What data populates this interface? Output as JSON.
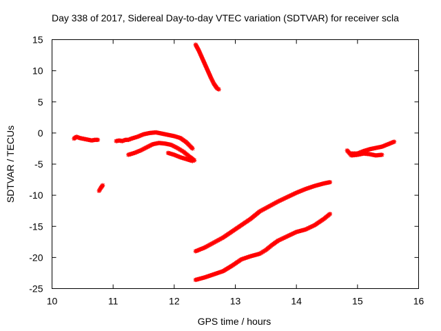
{
  "chart_data": {
    "type": "scatter",
    "title": "Day 338 of 2017, Sidereal Day-to-day VTEC variation (SDTVAR) for receiver scla",
    "xlabel": "GPS time / hours",
    "ylabel": "SDTVAR / TECUs",
    "xlim": [
      10,
      16
    ],
    "ylim": [
      -25,
      15
    ],
    "xticks": [
      10,
      11,
      12,
      13,
      14,
      15,
      16
    ],
    "yticks": [
      15,
      10,
      5,
      0,
      -5,
      -10,
      -15,
      -20,
      -25
    ],
    "grid": false,
    "marker": "plus-cross",
    "color": "#ff0000",
    "series": [
      {
        "name": "arc-1",
        "points": [
          [
            10.36,
            -0.9
          ],
          [
            10.4,
            -0.6
          ],
          [
            10.45,
            -0.8
          ],
          [
            10.5,
            -0.9
          ],
          [
            10.55,
            -1.0
          ],
          [
            10.6,
            -1.1
          ],
          [
            10.65,
            -1.2
          ],
          [
            10.7,
            -1.1
          ],
          [
            10.75,
            -1.1
          ]
        ]
      },
      {
        "name": "arc-2",
        "points": [
          [
            10.77,
            -9.3
          ],
          [
            10.8,
            -8.8
          ],
          [
            10.83,
            -8.4
          ]
        ]
      },
      {
        "name": "arc-3",
        "points": [
          [
            11.05,
            -1.3
          ],
          [
            11.1,
            -1.2
          ],
          [
            11.15,
            -1.3
          ],
          [
            11.2,
            -1.1
          ],
          [
            11.25,
            -1.1
          ],
          [
            11.3,
            -0.9
          ],
          [
            11.4,
            -0.6
          ],
          [
            11.5,
            -0.2
          ],
          [
            11.6,
            0.0
          ],
          [
            11.7,
            0.1
          ],
          [
            11.8,
            -0.1
          ],
          [
            11.9,
            -0.3
          ],
          [
            12.0,
            -0.5
          ],
          [
            12.1,
            -0.8
          ],
          [
            12.2,
            -1.5
          ],
          [
            12.3,
            -2.5
          ]
        ]
      },
      {
        "name": "arc-4",
        "points": [
          [
            11.25,
            -3.5
          ],
          [
            11.35,
            -3.2
          ],
          [
            11.45,
            -2.8
          ],
          [
            11.55,
            -2.3
          ],
          [
            11.65,
            -1.8
          ],
          [
            11.75,
            -1.6
          ],
          [
            11.85,
            -1.7
          ],
          [
            11.95,
            -1.9
          ],
          [
            12.05,
            -2.4
          ],
          [
            12.15,
            -3.0
          ],
          [
            12.25,
            -3.8
          ],
          [
            12.33,
            -4.4
          ]
        ]
      },
      {
        "name": "arc-5",
        "points": [
          [
            11.9,
            -3.2
          ],
          [
            12.0,
            -3.5
          ],
          [
            12.1,
            -3.9
          ],
          [
            12.2,
            -4.2
          ],
          [
            12.3,
            -4.5
          ]
        ]
      },
      {
        "name": "arc-6",
        "points": [
          [
            12.35,
            14.2
          ],
          [
            12.4,
            13.3
          ],
          [
            12.45,
            12.2
          ],
          [
            12.5,
            11.1
          ],
          [
            12.55,
            10.0
          ],
          [
            12.6,
            8.9
          ],
          [
            12.65,
            7.9
          ],
          [
            12.7,
            7.2
          ],
          [
            12.73,
            7.0
          ]
        ]
      },
      {
        "name": "arc-7",
        "points": [
          [
            12.35,
            -19.0
          ],
          [
            12.5,
            -18.4
          ],
          [
            12.65,
            -17.6
          ],
          [
            12.8,
            -16.8
          ],
          [
            12.95,
            -15.8
          ],
          [
            13.1,
            -14.8
          ],
          [
            13.25,
            -13.8
          ],
          [
            13.4,
            -12.6
          ],
          [
            13.55,
            -11.8
          ],
          [
            13.7,
            -11.0
          ],
          [
            13.85,
            -10.3
          ],
          [
            14.0,
            -9.6
          ],
          [
            14.15,
            -9.0
          ],
          [
            14.3,
            -8.5
          ],
          [
            14.45,
            -8.1
          ],
          [
            14.55,
            -7.9
          ]
        ]
      },
      {
        "name": "arc-8",
        "points": [
          [
            12.35,
            -23.6
          ],
          [
            12.5,
            -23.2
          ],
          [
            12.65,
            -22.7
          ],
          [
            12.8,
            -22.2
          ],
          [
            12.95,
            -21.3
          ],
          [
            13.1,
            -20.3
          ],
          [
            13.25,
            -19.8
          ],
          [
            13.4,
            -19.4
          ],
          [
            13.5,
            -18.8
          ],
          [
            13.6,
            -18.0
          ],
          [
            13.7,
            -17.3
          ],
          [
            13.85,
            -16.6
          ],
          [
            14.0,
            -15.9
          ],
          [
            14.15,
            -15.5
          ],
          [
            14.3,
            -14.8
          ],
          [
            14.45,
            -13.8
          ],
          [
            14.55,
            -13.0
          ]
        ]
      },
      {
        "name": "arc-9",
        "points": [
          [
            14.83,
            -2.8
          ],
          [
            14.9,
            -3.6
          ],
          [
            15.0,
            -3.5
          ],
          [
            15.1,
            -3.3
          ],
          [
            15.2,
            -3.4
          ],
          [
            15.3,
            -3.6
          ],
          [
            15.4,
            -3.5
          ]
        ]
      },
      {
        "name": "arc-10",
        "points": [
          [
            14.9,
            -3.3
          ],
          [
            15.0,
            -3.3
          ],
          [
            15.1,
            -2.9
          ],
          [
            15.2,
            -2.6
          ],
          [
            15.3,
            -2.4
          ],
          [
            15.4,
            -2.2
          ],
          [
            15.5,
            -1.8
          ],
          [
            15.6,
            -1.4
          ]
        ]
      }
    ]
  }
}
